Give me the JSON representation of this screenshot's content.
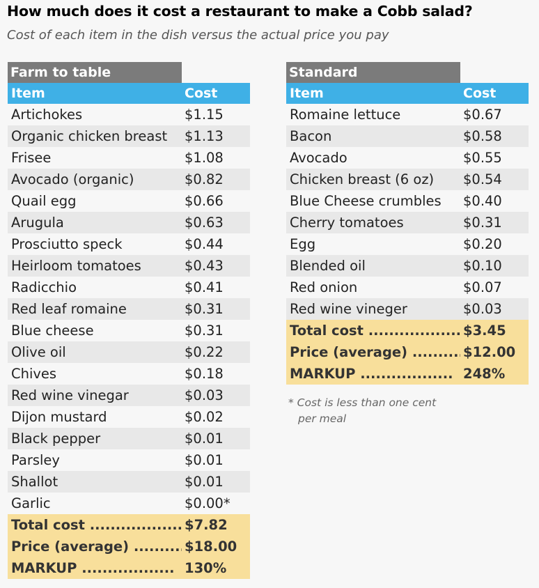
{
  "title": "How much does it cost a restaurant to make a Cobb salad?",
  "subtitle": "Cost of each item in the dish versus the actual price you pay",
  "headers": {
    "item": "Item",
    "cost": "Cost"
  },
  "farm": {
    "name": "Farm to table",
    "rows": [
      {
        "item": "Artichokes",
        "cost": "$1.15"
      },
      {
        "item": "Organic chicken breast",
        "cost": "$1.13"
      },
      {
        "item": "Frisee",
        "cost": "$1.08"
      },
      {
        "item": "Avocado (organic)",
        "cost": "$0.82"
      },
      {
        "item": "Quail egg",
        "cost": "$0.66"
      },
      {
        "item": "Arugula",
        "cost": "$0.63"
      },
      {
        "item": "Prosciutto speck",
        "cost": "$0.44"
      },
      {
        "item": "Heirloom tomatoes",
        "cost": "$0.43"
      },
      {
        "item": "Radicchio",
        "cost": "$0.41"
      },
      {
        "item": "Red leaf romaine",
        "cost": "$0.31"
      },
      {
        "item": "Blue cheese",
        "cost": "$0.31"
      },
      {
        "item": "Olive oil",
        "cost": "$0.22"
      },
      {
        "item": "Chives",
        "cost": "$0.18"
      },
      {
        "item": "Red wine vinegar",
        "cost": "$0.03"
      },
      {
        "item": "Dijon mustard",
        "cost": "$0.02"
      },
      {
        "item": "Black pepper",
        "cost": "$0.01"
      },
      {
        "item": "Parsley",
        "cost": "$0.01"
      },
      {
        "item": "Shallot",
        "cost": "$0.01"
      },
      {
        "item": "Garlic",
        "cost": "$0.00*"
      }
    ],
    "summary": [
      {
        "item": "Total cost ..................",
        "cost": "$7.82"
      },
      {
        "item": "Price (average) ..........",
        "cost": "$18.00"
      },
      {
        "item": "MARKUP ..................",
        "cost": "130%"
      }
    ]
  },
  "standard": {
    "name": "Standard",
    "rows": [
      {
        "item": "Romaine lettuce",
        "cost": "$0.67"
      },
      {
        "item": "Bacon",
        "cost": "$0.58"
      },
      {
        "item": "Avocado",
        "cost": "$0.55"
      },
      {
        "item": "Chicken breast (6 oz)",
        "cost": "$0.54"
      },
      {
        "item": "Blue Cheese crumbles",
        "cost": "$0.40"
      },
      {
        "item": "Cherry tomatoes",
        "cost": "$0.31"
      },
      {
        "item": "Egg",
        "cost": "$0.20"
      },
      {
        "item": "Blended oil",
        "cost": "$0.10"
      },
      {
        "item": "Red onion",
        "cost": "$0.07"
      },
      {
        "item": "Red wine vineger",
        "cost": "$0.03"
      }
    ],
    "summary": [
      {
        "item": "Total cost ..................",
        "cost": "$3.45"
      },
      {
        "item": "Price (average) ..........",
        "cost": "$12.00"
      },
      {
        "item": "MARKUP ..................",
        "cost": "248%"
      }
    ]
  },
  "footnote": {
    "line1": "* Cost is less than one cent",
    "line2": "per meal"
  }
}
